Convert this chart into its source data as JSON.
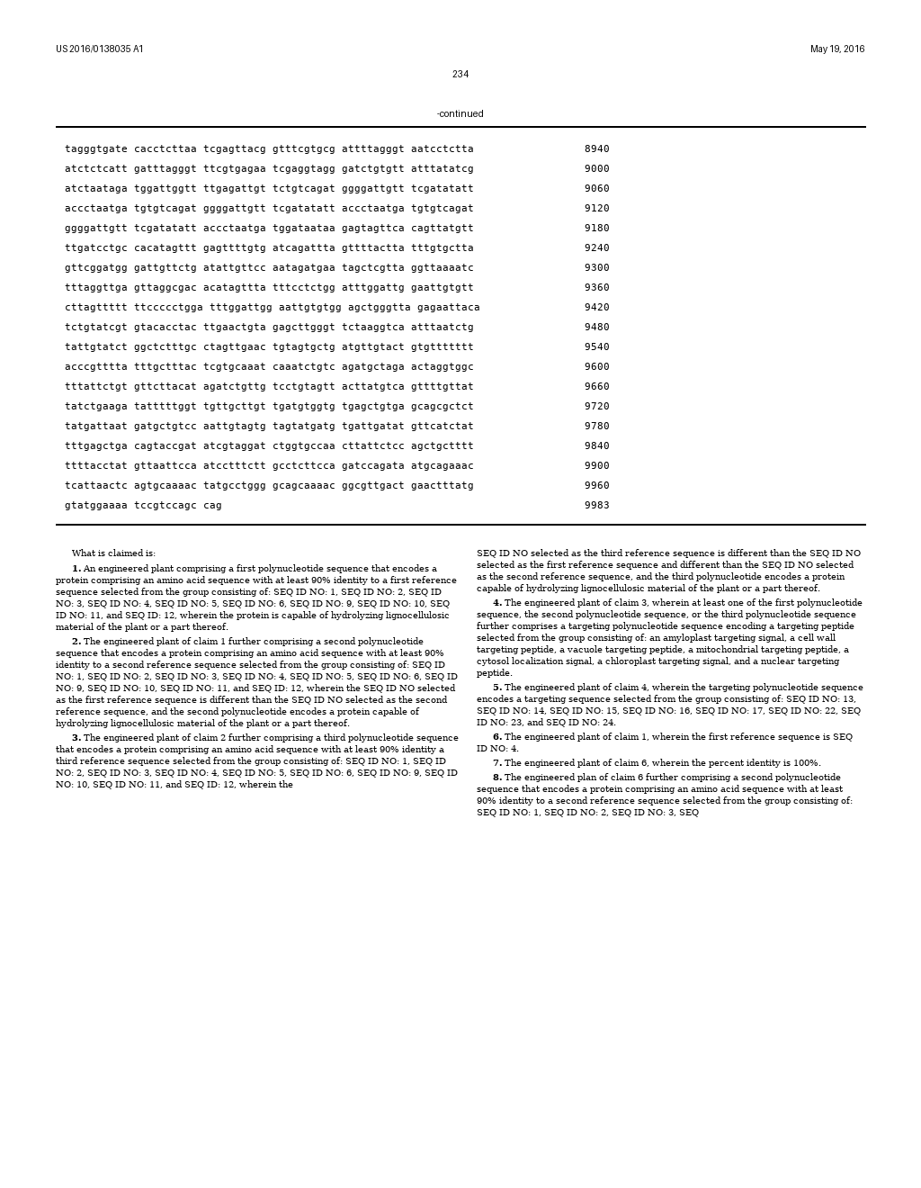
{
  "header_left": "US 2016/0138035 A1",
  "header_right": "May 19, 2016",
  "page_number": "234",
  "continued_label": "-continued",
  "sequence_data": [
    [
      "tagggtgate cacctcttaa tcgagttacg gtttcgtgcg attttagggt aatcctctta",
      "8940"
    ],
    [
      "atctctcatt gatttagggt ttcgtgagaa tcgaggtagg gatctgtgtt atttatatcg",
      "9000"
    ],
    [
      "atctaataga tggattggtt ttgagattgt tctgtcagat ggggattgtt tcgatatatt",
      "9060"
    ],
    [
      "accctaatga tgtgtcagat ggggattgtt tcgatatatt accctaatga tgtgtcagat",
      "9120"
    ],
    [
      "ggggattgtt tcgatatatt accctaatga tggataataa gagtagttca cagttatgtt",
      "9180"
    ],
    [
      "ttgatcctgc cacatagttt gagttttgtg atcagattta gttttactta tttgtgctta",
      "9240"
    ],
    [
      "gttcggatgg gattgttctg atattgttcc aatagatgaa tagctcgtta ggttaaaatc",
      "9300"
    ],
    [
      "tttaggttga gttaggcgac acatagttta tttcctctgg atttggattg gaattgtgtt",
      "9360"
    ],
    [
      "cttagttttt ttccccctgga tttggattgg aattgtgtgg agctgggtta gagaattaca",
      "9420"
    ],
    [
      "tctgtatcgt gtacacctac ttgaactgta gagcttgggt tctaaggtca atttaatctg",
      "9480"
    ],
    [
      "tattgtatct ggctctttgc ctagttgaac tgtagtgctg atgttgtact gtgttttttt",
      "9540"
    ],
    [
      "acccgtttta tttgctttac tcgtgcaaat caaatctgtc agatgctaga actaggtggc",
      "9600"
    ],
    [
      "tttattctgt gttcttacat agatctgttg tcctgtagtt acttatgtca gttttgttat",
      "9660"
    ],
    [
      "tatctgaaga tatttttggt tgttgcttgt tgatgtggtg tgagctgtga gcagcgctct",
      "9720"
    ],
    [
      "tatgattaat gatgctgtcc aattgtagtg tagtatgatg tgattgatat gttcatctat",
      "9780"
    ],
    [
      "tttgagctga cagtaccgat atcgtaggat ctggtgccaa cttattctcc agctgctttt",
      "9840"
    ],
    [
      "ttttacctat gttaattcca atcctttctt gcctcttcca gatccagata atgcagaaac",
      "9900"
    ],
    [
      "tcattaactc agtgcaaaac tatgcctggg gcagcaaaac ggcgttgact gaactttatg",
      "9960"
    ],
    [
      "gtatggaaaa tccgtccagc cag",
      "9983"
    ]
  ],
  "bg_color": "#ffffff",
  "text_color": "#000000"
}
